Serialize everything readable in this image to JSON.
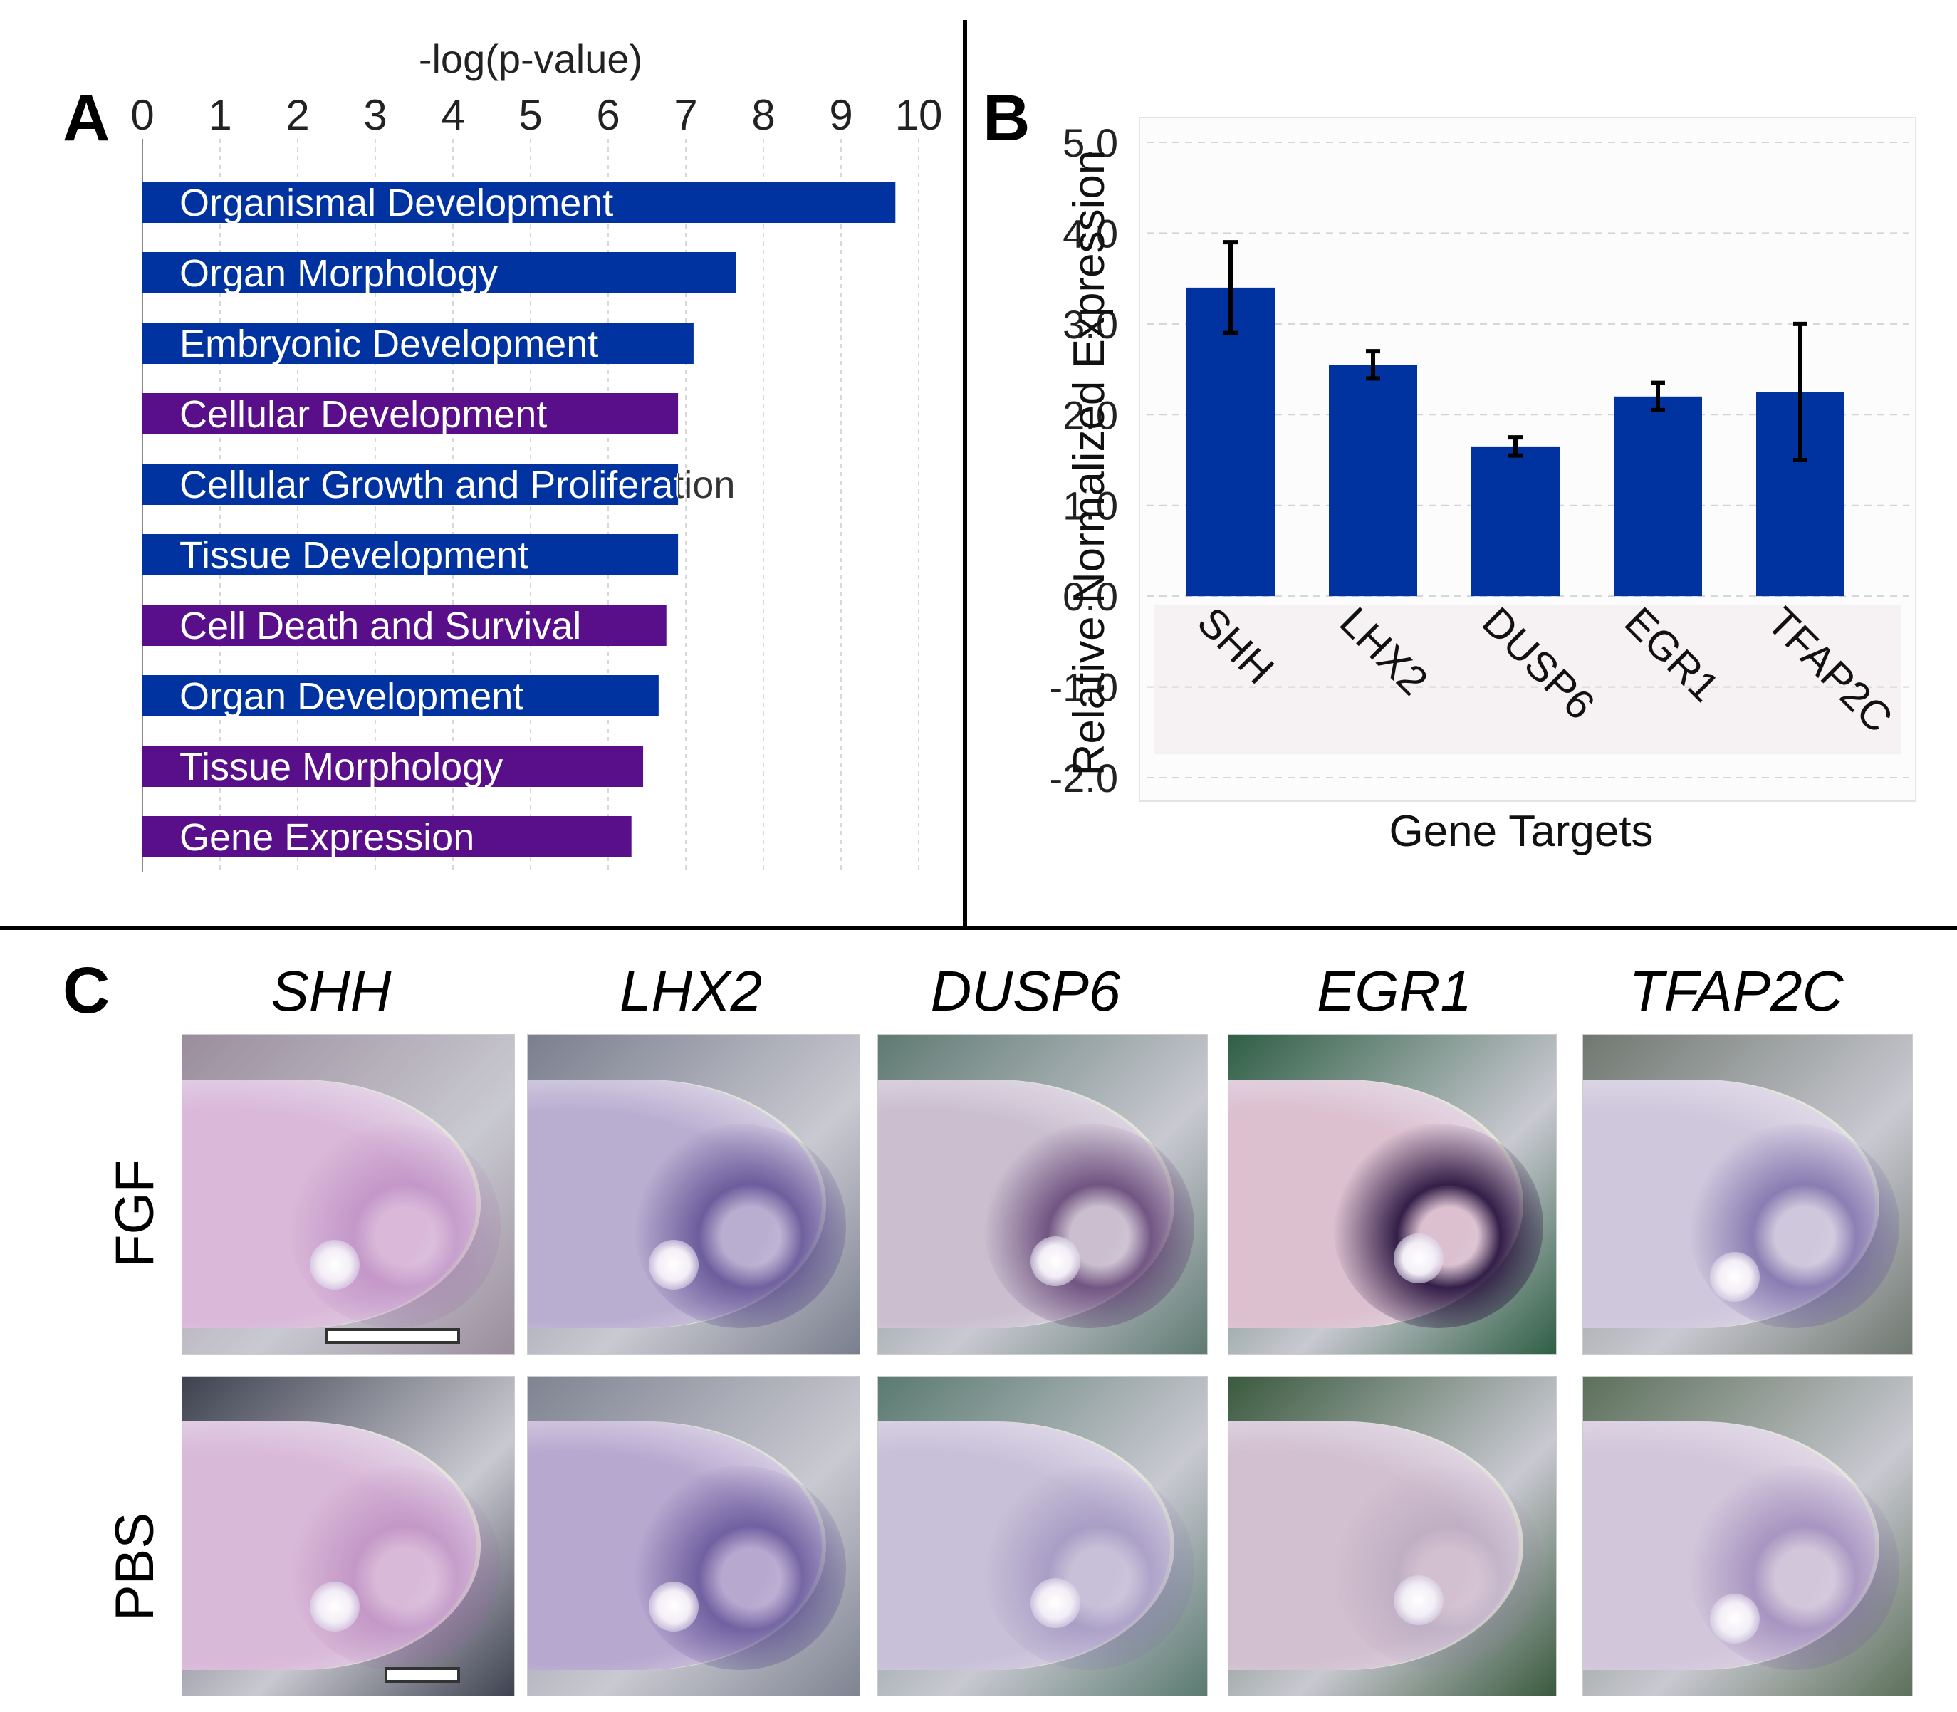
{
  "panels": {
    "a_letter": "A",
    "b_letter": "B",
    "c_letter": "C"
  },
  "chart_data": [
    {
      "type": "bar",
      "orientation": "horizontal",
      "panel": "A",
      "title": "",
      "xlabel": "-log(p-value)",
      "ylabel": "",
      "xlim": [
        0,
        10
      ],
      "xticks": [
        "0",
        "1",
        "2",
        "3",
        "4",
        "5",
        "6",
        "7",
        "8",
        "9",
        "10"
      ],
      "categories": [
        "Organismal Development",
        "Organ Morphology",
        "Embryonic Development",
        "Cellular Development",
        "Cellular Growth and Proliferation",
        "Tissue Development",
        "Cell Death and Survival",
        "Organ Development",
        "Tissue Morphology",
        "Gene Expression"
      ],
      "values": [
        9.7,
        7.65,
        7.1,
        6.9,
        6.9,
        6.9,
        6.75,
        6.65,
        6.45,
        6.3
      ],
      "bar_colors": [
        "#0033a0",
        "#0033a0",
        "#0033a0",
        "#5a0f8a",
        "#0033a0",
        "#0033a0",
        "#5a0f8a",
        "#0033a0",
        "#5a0f8a",
        "#5a0f8a"
      ],
      "grid": true
    },
    {
      "type": "bar",
      "panel": "B",
      "title": "",
      "xlabel": "Gene Targets",
      "ylabel": "Relative Normalized Expression",
      "ylim": [
        -2.0,
        5.0
      ],
      "yticks": [
        "5.0",
        "4.0",
        "3.0",
        "2.0",
        "1.0",
        "0.0",
        "-1.0",
        "-2.0"
      ],
      "categories": [
        "SHH",
        "LHX2",
        "DUSP6",
        "EGR1",
        "TFAP2C"
      ],
      "values": [
        3.4,
        2.55,
        1.65,
        2.2,
        2.25
      ],
      "error_low": [
        2.9,
        2.4,
        1.55,
        2.05,
        1.5
      ],
      "error_high": [
        3.9,
        2.7,
        1.75,
        2.35,
        3.0
      ],
      "bar_color": "#0033a0",
      "grid": true
    }
  ],
  "panel_c": {
    "genes": [
      "SHH",
      "LHX2",
      "DUSP6",
      "EGR1",
      "TFAP2C"
    ],
    "rows": [
      "FGF",
      "PBS"
    ],
    "images": {
      "fgf": [
        {
          "bg": "#9a8d9c",
          "limb": "#d9b8d9",
          "stain": "#9b5aa8",
          "stain_strength": 0.35
        },
        {
          "bg": "#7a7f8e",
          "limb": "#b9aed0",
          "stain": "#4b3a86",
          "stain_strength": 0.7
        },
        {
          "bg": "#5f7a72",
          "limb": "#cbbfcf",
          "stain": "#5a3a6e",
          "stain_strength": 0.8
        },
        {
          "bg": "#2f5f45",
          "limb": "#dcc0cf",
          "stain": "#2a1640",
          "stain_strength": 0.95
        },
        {
          "bg": "#6f7870",
          "limb": "#cfc8dc",
          "stain": "#5b4a96",
          "stain_strength": 0.6
        }
      ],
      "pbs": [
        {
          "bg": "#3e4250",
          "limb": "#d9b9d8",
          "stain": "#9a5aa6",
          "stain_strength": 0.35
        },
        {
          "bg": "#7f8492",
          "limb": "#b7a8cf",
          "stain": "#4a3a88",
          "stain_strength": 0.65
        },
        {
          "bg": "#5a7a70",
          "limb": "#c8c0d8",
          "stain": "#7a6aa8",
          "stain_strength": 0.4
        },
        {
          "bg": "#3a5a3e",
          "limb": "#d2c0d0",
          "stain": "#8a7aa0",
          "stain_strength": 0.25
        },
        {
          "bg": "#5c705a",
          "limb": "#d2c6da",
          "stain": "#6a4a9a",
          "stain_strength": 0.4
        }
      ]
    }
  }
}
